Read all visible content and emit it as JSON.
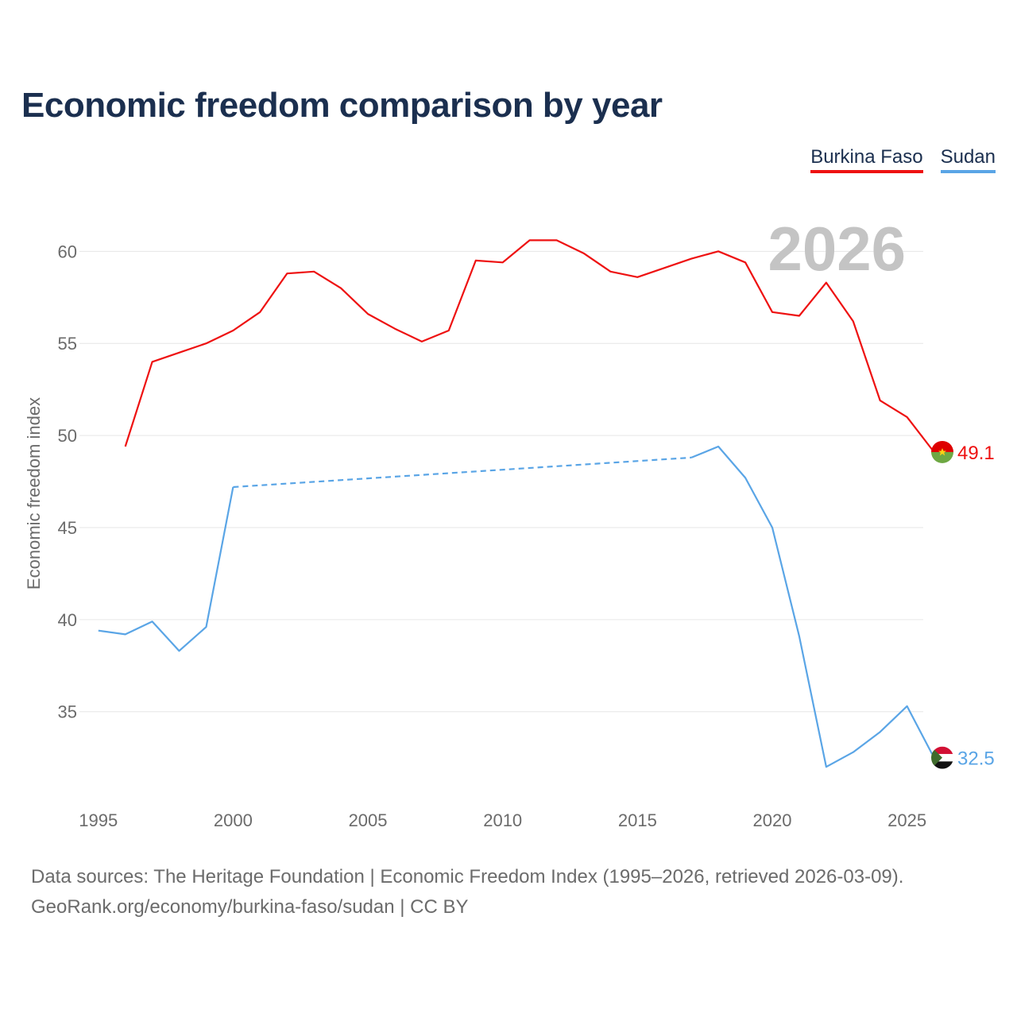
{
  "colors": {
    "title": "#1b2f4f",
    "grid": "#e6e6e6",
    "tick": "#6b6b6b",
    "year_watermark": "#c4c4c4",
    "burkina_faso": "#ee1111",
    "sudan": "#5aa5e6"
  },
  "header": {
    "title": "Economic freedom comparison by year"
  },
  "legend": {
    "items": [
      {
        "label": "Burkina Faso",
        "color": "#ee1111"
      },
      {
        "label": "Sudan",
        "color": "#5aa5e6"
      }
    ]
  },
  "footer": {
    "source_line": "Data sources: The Heritage Foundation | Economic Freedom Index (1995–2026, retrieved 2026-03-09).",
    "credit_line": "GeoRank.org/economy/burkina-faso/sudan | CC BY"
  },
  "chart_data": {
    "type": "line",
    "title": "Economic freedom comparison by year",
    "xlabel": "",
    "ylabel": "Economic freedom index",
    "xlim": [
      1994.3,
      2025.6
    ],
    "ylim": [
      30.5,
      62
    ],
    "xticks": [
      1995,
      2000,
      2005,
      2010,
      2015,
      2020,
      2025
    ],
    "yticks": [
      35,
      40,
      45,
      50,
      55,
      60
    ],
    "grid": true,
    "legend_position": "top-right",
    "year_label": "2026",
    "series": [
      {
        "name": "Burkina Faso",
        "color": "#ee1111",
        "end_label": "49.1",
        "points": [
          [
            1996,
            49.4
          ],
          [
            1997,
            54.0
          ],
          [
            1998,
            54.5
          ],
          [
            1999,
            55.0
          ],
          [
            2000,
            55.7
          ],
          [
            2001,
            56.7
          ],
          [
            2002,
            58.8
          ],
          [
            2003,
            58.9
          ],
          [
            2004,
            58.0
          ],
          [
            2005,
            56.6
          ],
          [
            2006,
            55.8
          ],
          [
            2007,
            55.1
          ],
          [
            2008,
            55.7
          ],
          [
            2009,
            59.5
          ],
          [
            2010,
            59.4
          ],
          [
            2011,
            60.6
          ],
          [
            2012,
            60.6
          ],
          [
            2013,
            59.9
          ],
          [
            2014,
            58.9
          ],
          [
            2015,
            58.6
          ],
          [
            2016,
            59.1
          ],
          [
            2017,
            59.6
          ],
          [
            2018,
            60.0
          ],
          [
            2019,
            59.4
          ],
          [
            2020,
            56.7
          ],
          [
            2021,
            56.5
          ],
          [
            2022,
            58.3
          ],
          [
            2023,
            56.2
          ],
          [
            2024,
            51.9
          ],
          [
            2025,
            51.0
          ],
          [
            2026,
            49.1
          ]
        ]
      },
      {
        "name": "Sudan",
        "color": "#5aa5e6",
        "end_label": "32.5",
        "gap": [
          2000,
          2017
        ],
        "points": [
          [
            1995,
            39.4
          ],
          [
            1996,
            39.2
          ],
          [
            1997,
            39.9
          ],
          [
            1998,
            38.3
          ],
          [
            1999,
            39.6
          ],
          [
            2000,
            47.2
          ],
          [
            2017,
            48.8
          ],
          [
            2018,
            49.4
          ],
          [
            2019,
            47.7
          ],
          [
            2020,
            45.0
          ],
          [
            2021,
            39.1
          ],
          [
            2022,
            32.0
          ],
          [
            2023,
            32.8
          ],
          [
            2024,
            33.9
          ],
          [
            2025,
            35.3
          ],
          [
            2026,
            32.5
          ]
        ]
      }
    ]
  }
}
